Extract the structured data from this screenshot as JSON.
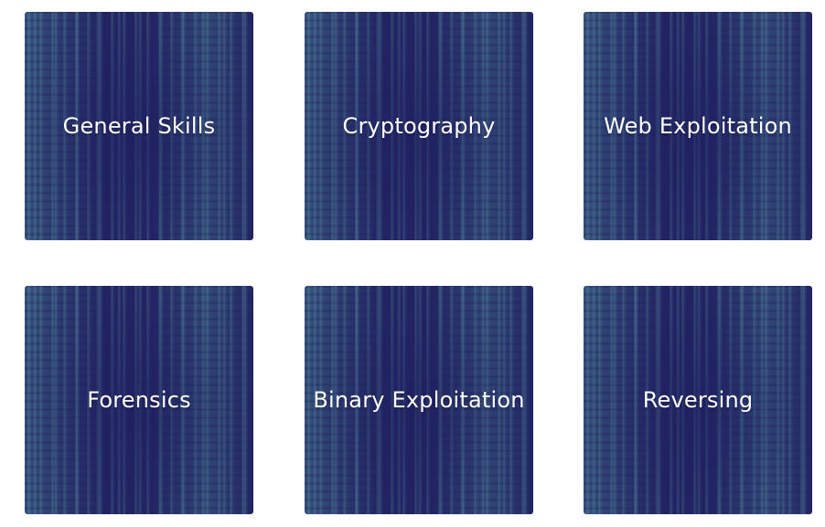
{
  "categories": [
    {
      "label": "General Skills"
    },
    {
      "label": "Cryptography"
    },
    {
      "label": "Web Exploitation"
    },
    {
      "label": "Forensics"
    },
    {
      "label": "Binary Exploitation"
    },
    {
      "label": "Reversing"
    }
  ],
  "colors": {
    "tile_background": "#232463",
    "streak_accent": "#6ec8be",
    "label_text": "#ffffff"
  }
}
